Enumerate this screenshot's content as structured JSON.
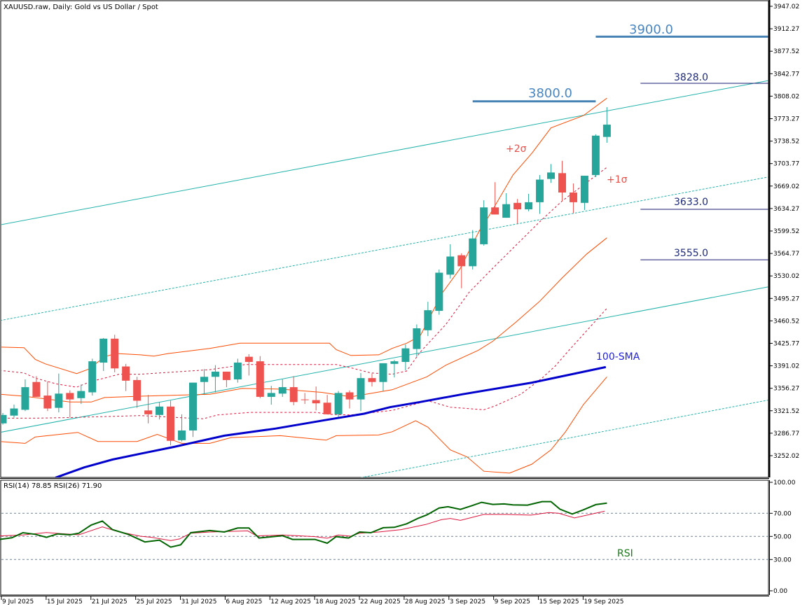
{
  "header": {
    "title": "XAUUSD.raw, Daily:  Gold vs US Dollar / Spot",
    "rsi_label": "RSI(14) 78.85 RSI(26) 71.90"
  },
  "colors": {
    "bull": "#26a69a",
    "bear": "#ef5350",
    "band_outer": "#ff4a00",
    "band_inner": "#dc143c",
    "channel": "#20b2aa",
    "sma": "#0000cd",
    "rsi14": "#006400",
    "rsi26": "#dc143c",
    "level_major": "#4682b4",
    "level_minor": "#191970"
  },
  "price_axis": [
    "3947.02",
    "3912.27",
    "3877.52",
    "3842.77",
    "3808.02",
    "3773.27",
    "3738.52",
    "3703.77",
    "3669.02",
    "3634.27",
    "3599.52",
    "3564.77",
    "3530.02",
    "3495.27",
    "3460.52",
    "3425.77",
    "3391.02",
    "3356.27",
    "3321.52",
    "3286.77",
    "3252.02"
  ],
  "rsi_axis": [
    "100.00",
    "70.00",
    "50.00",
    "30.00",
    "0.00"
  ],
  "date_axis": [
    "9 Jul 2025",
    "15 Jul 2025",
    "21 Jul 2025",
    "25 Jul 2025",
    "31 Jul 2025",
    "6 Aug 2025",
    "12 Aug 2025",
    "18 Aug 2025",
    "22 Aug 2025",
    "28 Aug 2025",
    "3 Sep 2025",
    "9 Sep 2025",
    "15 Sep 2025",
    "19 Sep 2025"
  ],
  "annotations": {
    "level_3900": "3900.0",
    "level_3828": "3828.0",
    "level_3800": "3800.0",
    "level_3633": "3633.0",
    "level_3555": "3555.0",
    "plus2sigma": "+2σ",
    "plus1sigma": "+1σ",
    "sma": "100-SMA",
    "rsi": "RSI"
  },
  "chart_data": {
    "type": "candlestick",
    "title": "XAUUSD.raw, Daily: Gold vs US Dollar / Spot",
    "ylim": [
      3218,
      3955
    ],
    "candles_ohlc": [
      [
        3302,
        3318,
        3300,
        3315
      ],
      [
        3314,
        3331,
        3311,
        3325
      ],
      [
        3323,
        3370,
        3321,
        3358
      ],
      [
        3366,
        3375,
        3343,
        3343
      ],
      [
        3345,
        3367,
        3321,
        3325
      ],
      [
        3326,
        3379,
        3319,
        3348
      ],
      [
        3349,
        3353,
        3311,
        3339
      ],
      [
        3341,
        3362,
        3332,
        3352
      ],
      [
        3350,
        3402,
        3345,
        3398
      ],
      [
        3396,
        3434,
        3383,
        3433
      ],
      [
        3433,
        3439,
        3381,
        3387
      ],
      [
        3390,
        3394,
        3352,
        3368
      ],
      [
        3369,
        3374,
        3326,
        3337
      ],
      [
        3322,
        3346,
        3302,
        3316
      ],
      [
        3315,
        3335,
        3308,
        3328
      ],
      [
        3328,
        3337,
        3268,
        3275
      ],
      [
        3276,
        3316,
        3274,
        3291
      ],
      [
        3291,
        3365,
        3281,
        3365
      ],
      [
        3366,
        3386,
        3346,
        3374
      ],
      [
        3374,
        3392,
        3350,
        3382
      ],
      [
        3382,
        3382,
        3358,
        3369
      ],
      [
        3370,
        3402,
        3365,
        3396
      ],
      [
        3405,
        3409,
        3376,
        3397
      ],
      [
        3398,
        3406,
        3341,
        3343
      ],
      [
        3343,
        3360,
        3331,
        3349
      ],
      [
        3348,
        3370,
        3343,
        3358
      ],
      [
        3358,
        3375,
        3330,
        3335
      ],
      [
        3339,
        3349,
        3332,
        3338
      ],
      [
        3338,
        3359,
        3322,
        3333
      ],
      [
        3334,
        3346,
        3316,
        3316
      ],
      [
        3316,
        3352,
        3312,
        3349
      ],
      [
        3350,
        3353,
        3325,
        3339
      ],
      [
        3339,
        3380,
        3321,
        3372
      ],
      [
        3372,
        3379,
        3359,
        3366
      ],
      [
        3366,
        3395,
        3352,
        3395
      ],
      [
        3394,
        3400,
        3373,
        3398
      ],
      [
        3397,
        3424,
        3384,
        3418
      ],
      [
        3417,
        3455,
        3405,
        3449
      ],
      [
        3446,
        3490,
        3437,
        3477
      ],
      [
        3476,
        3540,
        3470,
        3535
      ],
      [
        3532,
        3579,
        3526,
        3560
      ],
      [
        3562,
        3565,
        3511,
        3545
      ],
      [
        3545,
        3601,
        3540,
        3588
      ],
      [
        3579,
        3647,
        3577,
        3636
      ],
      [
        3636,
        3675,
        3625,
        3625
      ],
      [
        3620,
        3658,
        3620,
        3641
      ],
      [
        3643,
        3649,
        3611,
        3633
      ],
      [
        3633,
        3657,
        3630,
        3644
      ],
      [
        3644,
        3686,
        3626,
        3679
      ],
      [
        3680,
        3703,
        3674,
        3690
      ],
      [
        3689,
        3708,
        3645,
        3659
      ],
      [
        3659,
        3673,
        3627,
        3644
      ],
      [
        3643,
        3685,
        3632,
        3685
      ],
      [
        3686,
        3749,
        3683,
        3747
      ],
      [
        3745,
        3791,
        3736,
        3764
      ]
    ],
    "bollinger_upper2": [
      [
        -0.3,
        3420
      ],
      [
        1.9,
        3419
      ],
      [
        2.9,
        3401
      ],
      [
        3.8,
        3394
      ],
      [
        6.6,
        3379
      ],
      [
        7.7,
        3386
      ],
      [
        9.1,
        3405
      ],
      [
        10.1,
        3410
      ],
      [
        12.3,
        3408
      ],
      [
        13.5,
        3406
      ],
      [
        14.8,
        3410
      ],
      [
        18.5,
        3418
      ],
      [
        21.2,
        3426
      ],
      [
        29.2,
        3426
      ],
      [
        29.8,
        3416
      ],
      [
        31.1,
        3407
      ],
      [
        33.6,
        3408
      ],
      [
        34.8,
        3418
      ],
      [
        36.1,
        3426
      ],
      [
        37.3,
        3437
      ],
      [
        39.3,
        3504
      ],
      [
        40.9,
        3542
      ],
      [
        42.6,
        3600
      ],
      [
        43.4,
        3621
      ],
      [
        45.6,
        3686
      ],
      [
        47.3,
        3720
      ],
      [
        49.0,
        3759
      ],
      [
        51.9,
        3778
      ],
      [
        54.0,
        3805
      ]
    ],
    "bollinger_upper1": [
      [
        -0.3,
        3384
      ],
      [
        1.9,
        3380
      ],
      [
        2.9,
        3372
      ],
      [
        4.8,
        3363
      ],
      [
        6.6,
        3358
      ],
      [
        7.9,
        3367
      ],
      [
        9.1,
        3372
      ],
      [
        10.4,
        3378
      ],
      [
        12.3,
        3378
      ],
      [
        18.5,
        3385
      ],
      [
        21.7,
        3393
      ],
      [
        29.8,
        3393
      ],
      [
        31.1,
        3388
      ],
      [
        32.9,
        3380
      ],
      [
        34.8,
        3378
      ],
      [
        36.1,
        3383
      ],
      [
        37.3,
        3412
      ],
      [
        39.6,
        3455
      ],
      [
        41.7,
        3505
      ],
      [
        43.8,
        3542
      ],
      [
        45.9,
        3578
      ],
      [
        48.0,
        3614
      ],
      [
        50.0,
        3646
      ],
      [
        54.0,
        3698
      ]
    ],
    "bollinger_middle": [
      [
        -0.3,
        3347
      ],
      [
        1.9,
        3344
      ],
      [
        6.0,
        3335
      ],
      [
        7.9,
        3335
      ],
      [
        9.1,
        3342
      ],
      [
        12.3,
        3344
      ],
      [
        18.5,
        3347
      ],
      [
        21.4,
        3356
      ],
      [
        24.8,
        3355
      ],
      [
        28.5,
        3350
      ],
      [
        31.1,
        3343
      ],
      [
        34.8,
        3354
      ],
      [
        37.9,
        3374
      ],
      [
        39.6,
        3392
      ],
      [
        42.5,
        3415
      ],
      [
        43.8,
        3429
      ],
      [
        45.9,
        3459
      ],
      [
        48.0,
        3491
      ],
      [
        50.0,
        3527
      ],
      [
        52.2,
        3564
      ],
      [
        54.0,
        3589
      ]
    ],
    "bollinger_lower1": [
      [
        -0.3,
        3310
      ],
      [
        2.9,
        3310
      ],
      [
        6.0,
        3311
      ],
      [
        12.3,
        3314
      ],
      [
        17.9,
        3309
      ],
      [
        19.2,
        3315
      ],
      [
        22.1,
        3319
      ],
      [
        28.0,
        3319
      ],
      [
        29.2,
        3316
      ],
      [
        31.1,
        3315
      ],
      [
        34.8,
        3322
      ],
      [
        38.0,
        3337
      ],
      [
        40.0,
        3327
      ],
      [
        43.0,
        3323
      ],
      [
        44.0,
        3329
      ],
      [
        46.3,
        3347
      ],
      [
        48.2,
        3372
      ],
      [
        49.4,
        3391
      ],
      [
        50.5,
        3413
      ],
      [
        54.0,
        3480
      ]
    ],
    "bollinger_lower2": [
      [
        -0.3,
        3274
      ],
      [
        2.0,
        3271
      ],
      [
        2.9,
        3281
      ],
      [
        6.7,
        3288
      ],
      [
        8.5,
        3274
      ],
      [
        12.0,
        3274
      ],
      [
        13.8,
        3285
      ],
      [
        16.0,
        3271
      ],
      [
        18.5,
        3271
      ],
      [
        20.4,
        3280
      ],
      [
        24.8,
        3283
      ],
      [
        28.9,
        3276
      ],
      [
        29.8,
        3283
      ],
      [
        33.6,
        3284
      ],
      [
        34.8,
        3289
      ],
      [
        36.9,
        3306
      ],
      [
        38.0,
        3296
      ],
      [
        40.0,
        3261
      ],
      [
        41.5,
        3250
      ],
      [
        43.0,
        3228
      ],
      [
        45.3,
        3225
      ],
      [
        47.3,
        3239
      ],
      [
        49.0,
        3261
      ],
      [
        50.3,
        3289
      ],
      [
        51.9,
        3331
      ],
      [
        54.0,
        3374
      ]
    ],
    "sma100": [
      [
        4.7,
        3218
      ],
      [
        7.3,
        3234
      ],
      [
        9.8,
        3246
      ],
      [
        12.3,
        3255
      ],
      [
        15.4,
        3266
      ],
      [
        19.8,
        3283
      ],
      [
        24.4,
        3294
      ],
      [
        28.8,
        3307
      ],
      [
        32.3,
        3317
      ],
      [
        34.6,
        3327
      ],
      [
        37.3,
        3335
      ],
      [
        41.1,
        3347
      ],
      [
        47.3,
        3365
      ],
      [
        53.9,
        3389
      ]
    ],
    "channels": [
      {
        "style": "solid",
        "points": [
          [
            -0.25,
            3609
          ],
          [
            68.4,
            3832
          ]
        ]
      },
      {
        "style": "dotted",
        "points": [
          [
            -0.25,
            3461
          ],
          [
            68.4,
            3683
          ]
        ]
      },
      {
        "style": "solid",
        "points": [
          [
            -0.25,
            3288
          ],
          [
            68.4,
            3513
          ]
        ]
      },
      {
        "style": "dotted",
        "points": [
          [
            32.0,
            3218
          ],
          [
            68.4,
            3338
          ]
        ]
      }
    ],
    "levels": [
      {
        "price": 3900,
        "from": 53.0,
        "to": 68.4,
        "kind": "major"
      },
      {
        "price": 3828,
        "from": 57.0,
        "to": 68.4,
        "kind": "minor"
      },
      {
        "price": 3800,
        "from": 42.0,
        "to": 53.0,
        "kind": "major"
      },
      {
        "price": 3633,
        "from": 57.0,
        "to": 68.4,
        "kind": "minor"
      },
      {
        "price": 3555,
        "from": 57.0,
        "to": 68.4,
        "kind": "minor"
      }
    ],
    "rsi": {
      "levels": [
        70,
        50,
        30
      ],
      "rsi14": [
        [
          -0.3,
          47.4
        ],
        [
          0.8,
          48.8
        ],
        [
          1.8,
          53.2
        ],
        [
          2.9,
          51.8
        ],
        [
          3.9,
          49.2
        ],
        [
          4.9,
          52.2
        ],
        [
          6.0,
          51.4
        ],
        [
          6.8,
          52.8
        ],
        [
          7.9,
          59.9
        ],
        [
          8.9,
          63.3
        ],
        [
          9.8,
          55.9
        ],
        [
          11.2,
          51.8
        ],
        [
          12.7,
          45.2
        ],
        [
          14.0,
          46.8
        ],
        [
          15.0,
          40.7
        ],
        [
          15.9,
          42.7
        ],
        [
          16.8,
          53.2
        ],
        [
          18.5,
          55.1
        ],
        [
          19.8,
          53.8
        ],
        [
          21.0,
          57.3
        ],
        [
          22.0,
          57.3
        ],
        [
          22.9,
          48.6
        ],
        [
          25.0,
          50.6
        ],
        [
          25.9,
          47.4
        ],
        [
          27.9,
          47.4
        ],
        [
          29.0,
          44.1
        ],
        [
          29.8,
          49.8
        ],
        [
          30.9,
          48.6
        ],
        [
          31.9,
          53.8
        ],
        [
          32.9,
          53.2
        ],
        [
          34.0,
          57.5
        ],
        [
          35.0,
          57.9
        ],
        [
          36.1,
          60.9
        ],
        [
          37.1,
          65.6
        ],
        [
          37.9,
          68.6
        ],
        [
          39.0,
          74.6
        ],
        [
          39.8,
          75.7
        ],
        [
          40.9,
          73.4
        ],
        [
          41.9,
          76.5
        ],
        [
          42.8,
          79.5
        ],
        [
          43.8,
          77.7
        ],
        [
          44.8,
          78.1
        ],
        [
          45.6,
          77.3
        ],
        [
          46.9,
          77.1
        ],
        [
          48.2,
          80.1
        ],
        [
          49.0,
          80.1
        ],
        [
          49.8,
          73.6
        ],
        [
          50.9,
          69.4
        ],
        [
          51.9,
          73.0
        ],
        [
          53.0,
          77.5
        ],
        [
          54.0,
          78.85
        ]
      ],
      "rsi26": [
        [
          -0.3,
          50.4
        ],
        [
          1.8,
          51.2
        ],
        [
          3.9,
          53.4
        ],
        [
          4.9,
          52.6
        ],
        [
          6.8,
          51.4
        ],
        [
          8.9,
          58.3
        ],
        [
          10.2,
          54.4
        ],
        [
          12.3,
          50.2
        ],
        [
          13.3,
          49.2
        ],
        [
          15.0,
          46.4
        ],
        [
          15.8,
          47.8
        ],
        [
          16.8,
          52.8
        ],
        [
          18.5,
          53.8
        ],
        [
          21.9,
          54.8
        ],
        [
          22.7,
          50.4
        ],
        [
          25.0,
          51.2
        ],
        [
          27.9,
          49.8
        ],
        [
          29.0,
          48.4
        ],
        [
          30.0,
          51.2
        ],
        [
          31.1,
          50.2
        ],
        [
          31.9,
          52.8
        ],
        [
          33.6,
          53.8
        ],
        [
          35.6,
          55.9
        ],
        [
          37.8,
          60.3
        ],
        [
          39.2,
          64.5
        ],
        [
          40.0,
          65.6
        ],
        [
          40.9,
          63.9
        ],
        [
          43.0,
          69.0
        ],
        [
          45.0,
          69.0
        ],
        [
          47.2,
          68.4
        ],
        [
          48.8,
          70.6
        ],
        [
          49.7,
          70.0
        ],
        [
          51.1,
          66.0
        ],
        [
          53.8,
          71.9
        ]
      ]
    }
  }
}
